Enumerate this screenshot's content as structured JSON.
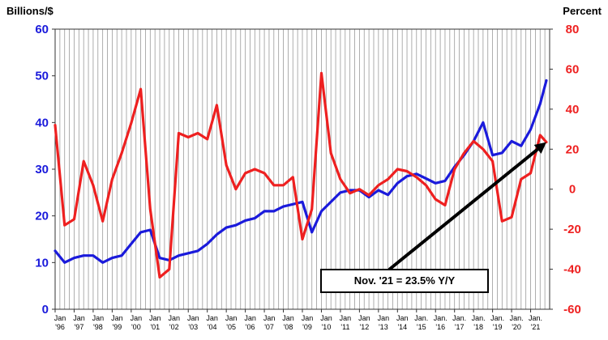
{
  "chart_data": {
    "type": "line",
    "title": "",
    "left_axis": {
      "label": "Billions/$",
      "ylim": [
        0,
        60
      ],
      "ticks": [
        0,
        10,
        20,
        30,
        40,
        50,
        60
      ],
      "color": "#1a1adb"
    },
    "right_axis": {
      "label": "Percent",
      "ylim": [
        -60,
        80
      ],
      "ticks": [
        -60,
        -40,
        -20,
        0,
        20,
        40,
        60,
        80
      ],
      "color": "#ee2020"
    },
    "x_tick_labels": [
      {
        "top": "Jan",
        "bottom": "'96"
      },
      {
        "top": "Jan",
        "bottom": "'97"
      },
      {
        "top": "Jan",
        "bottom": "'98"
      },
      {
        "top": "Jan",
        "bottom": "'99"
      },
      {
        "top": "Jan",
        "bottom": "'00"
      },
      {
        "top": "Jan",
        "bottom": "'01"
      },
      {
        "top": "Jan",
        "bottom": "'02"
      },
      {
        "top": "Jan",
        "bottom": "'03"
      },
      {
        "top": "Jan",
        "bottom": "'04"
      },
      {
        "top": "Jan",
        "bottom": "'05"
      },
      {
        "top": "Jan",
        "bottom": "'06"
      },
      {
        "top": "Jan",
        "bottom": "'07"
      },
      {
        "top": "Jan",
        "bottom": "'08"
      },
      {
        "top": "Jan",
        "bottom": "'09"
      },
      {
        "top": "Jan",
        "bottom": "'10"
      },
      {
        "top": "Jan",
        "bottom": "'11"
      },
      {
        "top": "Jan",
        "bottom": "'12"
      },
      {
        "top": "Jan",
        "bottom": "'13"
      },
      {
        "top": "Jan",
        "bottom": "'14"
      },
      {
        "top": "Jan.",
        "bottom": "'15"
      },
      {
        "top": "Jan.",
        "bottom": "'16"
      },
      {
        "top": "Jan.",
        "bottom": "'17"
      },
      {
        "top": "Jan.",
        "bottom": "'18"
      },
      {
        "top": "Jan.",
        "bottom": "'19"
      },
      {
        "top": "Jan.",
        "bottom": "'20"
      },
      {
        "top": "Jan.",
        "bottom": "'21"
      }
    ],
    "grid": "vertical",
    "annotation": "Nov. '21 = 23.5% Y/Y",
    "series": [
      {
        "axis": "left",
        "color": "#1a1adb",
        "x": [
          1996.0,
          1996.5,
          1997.0,
          1997.5,
          1998.0,
          1998.5,
          1999.0,
          1999.5,
          2000.0,
          2000.5,
          2001.0,
          2001.5,
          2002.0,
          2002.5,
          2003.0,
          2003.5,
          2004.0,
          2004.5,
          2005.0,
          2005.5,
          2006.0,
          2006.5,
          2007.0,
          2007.5,
          2008.0,
          2008.5,
          2009.0,
          2009.5,
          2010.0,
          2010.5,
          2011.0,
          2011.5,
          2012.0,
          2012.5,
          2013.0,
          2013.5,
          2014.0,
          2014.5,
          2015.0,
          2015.5,
          2016.0,
          2016.5,
          2017.0,
          2017.5,
          2018.0,
          2018.5,
          2019.0,
          2019.5,
          2020.0,
          2020.5,
          2021.0,
          2021.5,
          2021.83
        ],
        "y": [
          12.5,
          10.0,
          11.0,
          11.5,
          11.5,
          10.0,
          11.0,
          11.5,
          14.0,
          16.5,
          17.0,
          11.0,
          10.5,
          11.5,
          12.0,
          12.5,
          14.0,
          16.0,
          17.5,
          18.0,
          19.0,
          19.5,
          21.0,
          21.0,
          22.0,
          22.5,
          23.0,
          16.5,
          21.0,
          23.0,
          25.0,
          25.5,
          25.5,
          24.0,
          25.5,
          24.5,
          27.0,
          28.5,
          29.0,
          28.0,
          27.0,
          27.5,
          30.5,
          33.0,
          36.0,
          40.0,
          33.0,
          33.5,
          36.0,
          35.0,
          38.5,
          44.0,
          49.0
        ]
      },
      {
        "axis": "right",
        "color": "#ee2020",
        "x": [
          1996.0,
          1996.5,
          1997.0,
          1997.5,
          1998.0,
          1998.5,
          1999.0,
          1999.5,
          2000.0,
          2000.5,
          2001.0,
          2001.5,
          2002.0,
          2002.5,
          2003.0,
          2003.5,
          2004.0,
          2004.5,
          2005.0,
          2005.5,
          2006.0,
          2006.5,
          2007.0,
          2007.5,
          2008.0,
          2008.5,
          2009.0,
          2009.5,
          2010.0,
          2010.5,
          2011.0,
          2011.5,
          2012.0,
          2012.5,
          2013.0,
          2013.5,
          2014.0,
          2014.5,
          2015.0,
          2015.5,
          2016.0,
          2016.5,
          2017.0,
          2017.5,
          2018.0,
          2018.5,
          2019.0,
          2019.5,
          2020.0,
          2020.5,
          2021.0,
          2021.5,
          2021.83
        ],
        "y": [
          32.0,
          -18.0,
          -15.0,
          14.0,
          2.0,
          -16.0,
          5.0,
          18.0,
          33.0,
          50.0,
          -10.0,
          -44.0,
          -40.0,
          28.0,
          26.0,
          28.0,
          25.0,
          42.0,
          12.0,
          0.0,
          8.0,
          10.0,
          8.0,
          2.0,
          2.0,
          6.0,
          -25.0,
          -10.0,
          58.0,
          18.0,
          5.0,
          -2.0,
          0.0,
          -3.0,
          2.0,
          5.0,
          10.0,
          9.0,
          6.0,
          2.0,
          -5.0,
          -8.0,
          10.0,
          18.0,
          24.0,
          20.0,
          14.0,
          -16.0,
          -14.0,
          5.0,
          8.0,
          27.0,
          23.5
        ]
      }
    ]
  }
}
